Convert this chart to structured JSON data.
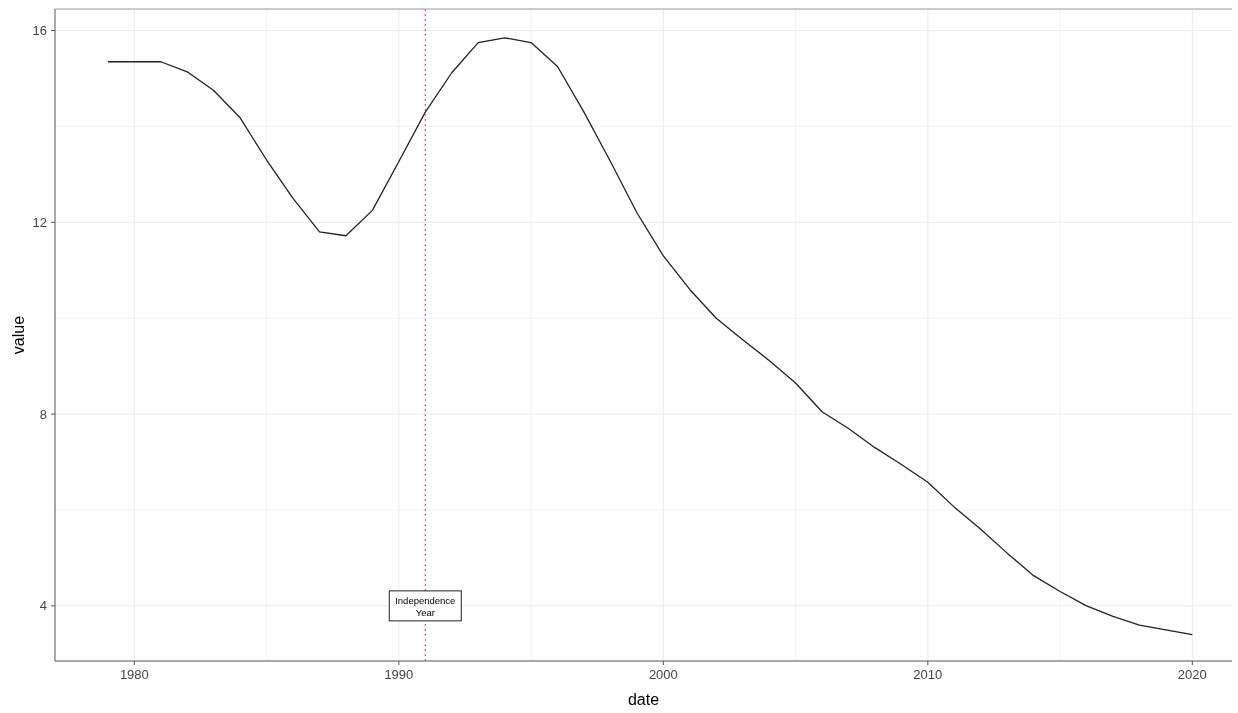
{
  "chart_data": {
    "type": "line",
    "xlabel": "date",
    "ylabel": "value",
    "x": [
      1979,
      1980,
      1981,
      1982,
      1983,
      1984,
      1985,
      1986,
      1987,
      1988,
      1989,
      1990,
      1991,
      1992,
      1993,
      1994,
      1995,
      1996,
      1997,
      1998,
      1999,
      2000,
      2001,
      2002,
      2003,
      2004,
      2005,
      2006,
      2007,
      2008,
      2009,
      2010,
      2011,
      2012,
      2013,
      2014,
      2015,
      2016,
      2017,
      2018,
      2019,
      2020
    ],
    "series": [
      {
        "color": "#222222",
        "values": [
          15.35,
          15.35,
          15.35,
          15.14,
          14.75,
          14.18,
          13.3,
          12.5,
          11.8,
          11.72,
          12.25,
          13.27,
          14.3,
          15.12,
          15.75,
          15.85,
          15.75,
          15.25,
          14.3,
          13.27,
          12.2,
          11.3,
          10.6,
          10.0,
          9.55,
          9.12,
          8.65,
          8.05,
          7.7,
          7.3,
          6.95,
          6.58,
          6.06,
          5.6,
          5.1,
          4.63,
          4.3,
          4.0,
          3.78,
          3.6,
          3.5,
          3.4
        ]
      }
    ],
    "xlim": [
      1977,
      2021.5
    ],
    "ylim": [
      2.85,
      16.45
    ],
    "xticks": [
      1980,
      {
        "value": 1985,
        "label": null
      },
      1990,
      {
        "value": 1995,
        "label": null
      },
      2000,
      {
        "value": 2005,
        "label": null
      },
      2010,
      {
        "value": 2015,
        "label": null
      },
      2020
    ],
    "yticks": [
      4,
      {
        "value": 6,
        "label": null
      },
      8,
      {
        "value": 10,
        "label": null
      },
      12,
      {
        "value": 14,
        "label": null
      },
      16
    ],
    "grid": true,
    "line_style": "solid",
    "marker": "none",
    "ref_lines": [
      {
        "axis": "x",
        "value": 1991,
        "color": "#e06070",
        "line_style": "dotted"
      }
    ],
    "annotations": [
      {
        "text": "Independence Year",
        "x": 1991,
        "y": 4
      }
    ]
  }
}
